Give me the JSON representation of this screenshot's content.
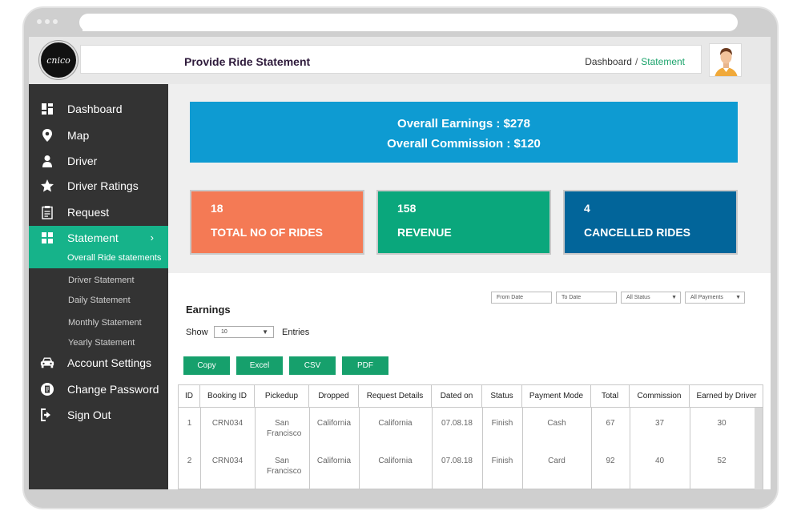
{
  "app": {
    "logo_text": "cnico",
    "page_title": "Provide Ride Statement",
    "breadcrumb": [
      "Dashboard",
      "Statement"
    ]
  },
  "sidebar": {
    "items": [
      {
        "label": "Dashboard",
        "icon": "dashboard-icon"
      },
      {
        "label": "Map",
        "icon": "map-pin-icon"
      },
      {
        "label": "Driver",
        "icon": "user-icon"
      },
      {
        "label": "Driver Ratings",
        "icon": "star-icon"
      },
      {
        "label": "Request",
        "icon": "clipboard-icon"
      },
      {
        "label": "Statement",
        "icon": "grid-icon",
        "active": true
      },
      {
        "label": "Account Settings",
        "icon": "car-icon"
      },
      {
        "label": "Change Password",
        "icon": "document-icon"
      },
      {
        "label": "Sign Out",
        "icon": "sign-out-icon"
      }
    ],
    "sub_items": [
      "Overall Ride statements",
      "Driver Statement",
      "Daily Statement",
      "Monthly Statement",
      "Yearly Statement"
    ]
  },
  "summary": {
    "earnings_line": "Overall Earnings : $278",
    "commission_line": "Overall Commission : $120"
  },
  "cards": [
    {
      "value": "18",
      "label": "TOTAL NO OF RIDES",
      "color": "#f47a55"
    },
    {
      "value": "158",
      "label": "REVENUE",
      "color": "#0aa77c"
    },
    {
      "value": "4",
      "label": "CANCELLED RIDES",
      "color": "#02659a"
    }
  ],
  "filters": {
    "from_date": "From Date",
    "to_date": "To Date",
    "status": "All Status",
    "payments": "All Payments"
  },
  "earnings": {
    "title": "Earnings",
    "show_label": "Show",
    "show_value": "10",
    "entries_label": "Entries",
    "buttons": [
      "Copy",
      "Excel",
      "CSV",
      "PDF"
    ]
  },
  "table": {
    "headers": [
      "ID",
      "Booking ID",
      "Pickedup",
      "Dropped",
      "Request Details",
      "Dated on",
      "Status",
      "Payment Mode",
      "Total",
      "Commission",
      "Earned by Driver"
    ],
    "rows": [
      [
        "1",
        "CRN034",
        "San Francisco",
        "California",
        "California",
        "07.08.18",
        "Finish",
        "Cash",
        "67",
        "37",
        "30"
      ],
      [
        "2",
        "CRN034",
        "San Francisco",
        "California",
        "California",
        "07.08.18",
        "Finish",
        "Card",
        "92",
        "40",
        "52"
      ]
    ]
  },
  "colors": {
    "accent": "#16b38a",
    "sidebar": "#333333",
    "earnings_banner": "#0e9bd2",
    "button": "#16a06c"
  }
}
